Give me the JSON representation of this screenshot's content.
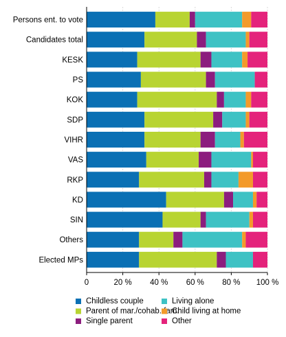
{
  "chart_data": {
    "type": "bar",
    "orientation": "horizontal",
    "stacked": true,
    "categories": [
      "Persons ent. to vote",
      "Candidates total",
      "KESK",
      "PS",
      "KOK",
      "SDP",
      "VIHR",
      "VAS",
      "RKP",
      "KD",
      "SIN",
      "Others",
      "Elected MPs"
    ],
    "series": [
      {
        "name": "Childless couple",
        "color": "#0a70b4",
        "values": [
          38,
          32,
          28,
          30,
          28,
          32,
          32,
          33,
          29,
          44,
          42,
          29,
          29
        ]
      },
      {
        "name": "Parent of mar./cohab. fam.",
        "color": "#b8d432",
        "values": [
          19,
          29,
          35,
          36,
          44,
          38,
          31,
          29,
          36,
          32,
          21,
          19,
          43
        ]
      },
      {
        "name": "Single parent",
        "color": "#8c1d7e",
        "values": [
          3,
          5,
          6,
          5,
          4,
          5,
          8,
          7,
          4,
          5,
          3,
          5,
          5
        ]
      },
      {
        "name": "Living alone",
        "color": "#3ec2c4",
        "values": [
          26,
          22,
          17,
          22,
          12,
          13,
          14,
          22,
          15,
          11,
          24,
          33,
          15
        ]
      },
      {
        "name": "Child living at home",
        "color": "#f39a2a",
        "values": [
          5,
          2,
          3,
          0,
          3,
          2,
          2,
          1,
          8,
          2,
          2,
          2,
          0
        ]
      },
      {
        "name": "Other",
        "color": "#e4237b",
        "values": [
          9,
          10,
          11,
          7,
          9,
          10,
          13,
          8,
          8,
          6,
          8,
          12,
          8
        ]
      }
    ],
    "xlim": [
      0,
      100
    ],
    "xticks": [
      0,
      20,
      40,
      60,
      80,
      100
    ],
    "xtick_labels": [
      "0",
      "20 %",
      "40 %",
      "60 %",
      "80 %",
      "100 %"
    ],
    "grid": "vertical",
    "legend_position": "bottom",
    "title": "",
    "xlabel": "",
    "ylabel": ""
  }
}
